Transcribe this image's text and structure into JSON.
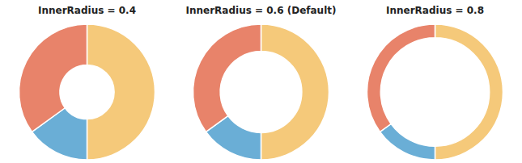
{
  "chart_data": [
    {
      "type": "pie",
      "title": "InnerRadius = 0.4",
      "values": [
        50,
        15,
        35
      ],
      "colors": [
        "#F5C97A",
        "#6AAED6",
        "#E8836A"
      ],
      "inner_radius": 0.4
    },
    {
      "type": "pie",
      "title": "InnerRadius = 0.6 (Default)",
      "values": [
        50,
        15,
        35
      ],
      "colors": [
        "#F5C97A",
        "#6AAED6",
        "#E8836A"
      ],
      "inner_radius": 0.6
    },
    {
      "type": "pie",
      "title": "InnerRadius = 0.8",
      "values": [
        50,
        15,
        35
      ],
      "colors": [
        "#F5C97A",
        "#6AAED6",
        "#E8836A"
      ],
      "inner_radius": 0.8
    }
  ]
}
